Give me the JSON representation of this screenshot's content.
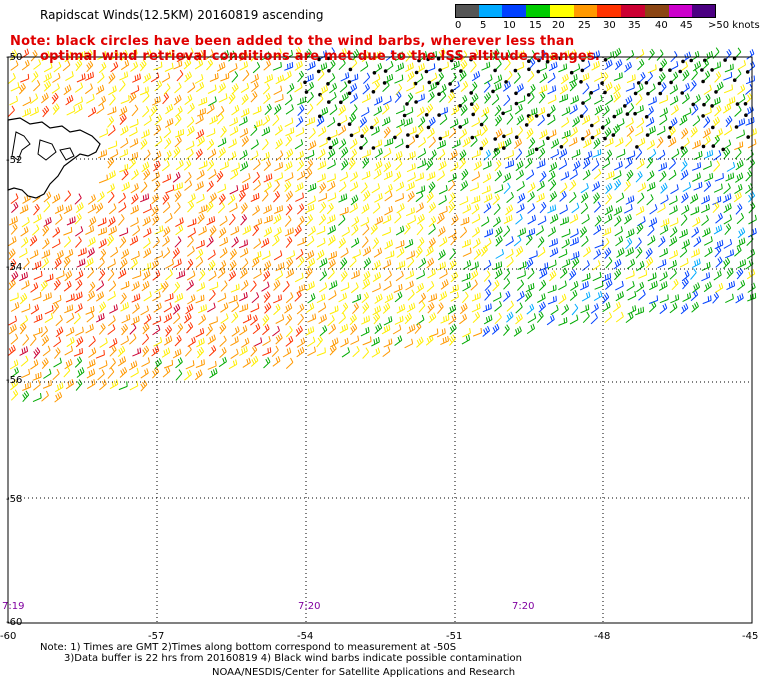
{
  "title": "Rapidscat Winds(12.5KM) 20160819 ascending",
  "note_line1": "Note: black circles have been added to the wind barbs, wherever less than",
  "note_line2": "optimal wind retrieval conditions are met due to the ISS altitude changes.",
  "color_scale": {
    "labels": [
      "0",
      "5",
      "10",
      "15",
      "20",
      "25",
      "30",
      "35",
      "40",
      "45",
      ">50 knots"
    ],
    "colors": [
      "#555555",
      "#00aaff",
      "#0040ff",
      "#00cc00",
      "#ffff00",
      "#ff9900",
      "#ff3300",
      "#cc0033",
      "#8b4513",
      "#cc00cc",
      "#4b0082"
    ]
  },
  "lat_labels": [
    "-50",
    "-52",
    "-54",
    "-56",
    "-58",
    "-60"
  ],
  "lon_labels": [
    "-60",
    "-57",
    "-54",
    "-51",
    "-48",
    "-45"
  ],
  "time_labels": [
    "7:19",
    "7:20",
    "7:20"
  ],
  "footnote_line1": "Note: 1) Times are GMT 2)Times along bottom correspond to measurement at -50S",
  "footnote_line2": "3)Data buffer is 22 hrs from 20160819 4) Black wind barbs indicate possible contamination",
  "credit": "NOAA/NESDIS/Center for Satellite Applications and Research"
}
